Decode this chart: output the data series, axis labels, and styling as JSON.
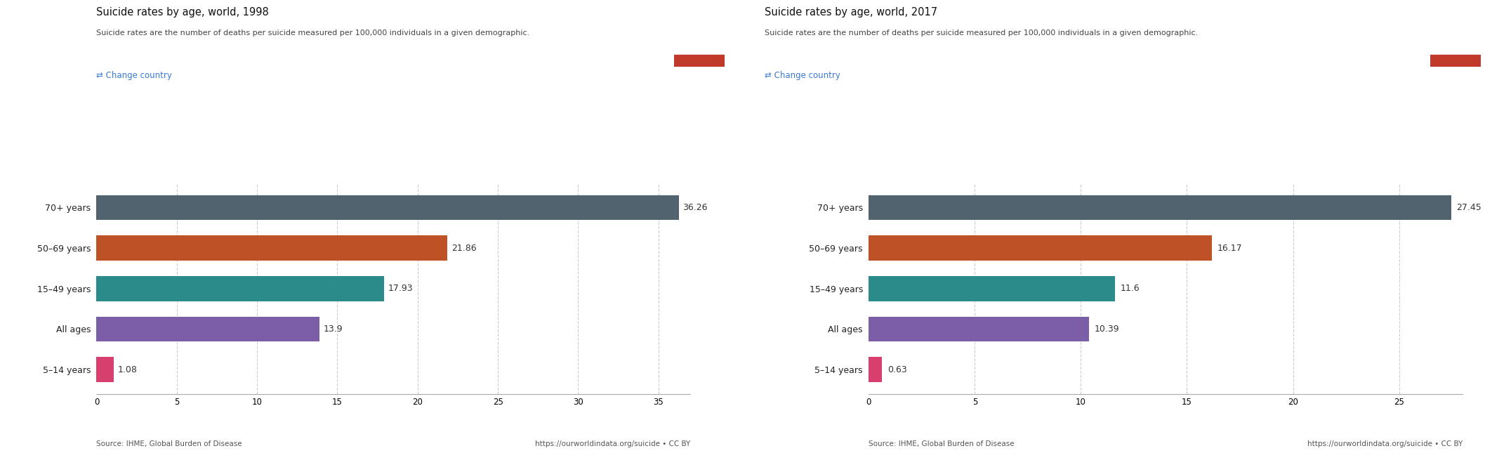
{
  "chart1": {
    "title": "Suicide rates by age, world, 1998",
    "subtitle": "Suicide rates are the number of deaths per suicide measured per 100,000 individuals in a given demographic.",
    "categories": [
      "70+ years",
      "50–69 years",
      "15–49 years",
      "All ages",
      "5–14 years"
    ],
    "values": [
      36.26,
      21.86,
      17.93,
      13.9,
      1.08
    ],
    "colors": [
      "#526370",
      "#bf5127",
      "#2b8b8b",
      "#7c5da8",
      "#d63f6e"
    ],
    "xlim": [
      0,
      37
    ],
    "xticks": [
      0,
      5,
      10,
      15,
      20,
      25,
      30,
      35
    ],
    "source": "Source: IHME, Global Burden of Disease",
    "url": "https://ourworldindata.org/suicide • CC BY"
  },
  "chart2": {
    "title": "Suicide rates by age, world, 2017",
    "subtitle": "Suicide rates are the number of deaths per suicide measured per 100,000 individuals in a given demographic.",
    "categories": [
      "70+ years",
      "50–69 years",
      "15–49 years",
      "All ages",
      "5–14 years"
    ],
    "values": [
      27.45,
      16.17,
      11.6,
      10.39,
      0.63
    ],
    "colors": [
      "#526370",
      "#bf5127",
      "#2b8b8b",
      "#7c5da8",
      "#d63f6e"
    ],
    "xlim": [
      0,
      28
    ],
    "xticks": [
      0,
      5,
      10,
      15,
      20,
      25
    ],
    "source": "Source: IHME, Global Burden of Disease",
    "url": "https://ourworldindata.org/suicide • CC BY"
  },
  "owid_bg": "#1d3557",
  "owid_red": "#c0392b",
  "change_country_color": "#3a7bd5",
  "background_color": "#ffffff",
  "bar_height": 0.62,
  "title_fontsize": 10.5,
  "subtitle_fontsize": 8,
  "label_fontsize": 9,
  "tick_fontsize": 8.5,
  "value_fontsize": 9,
  "source_fontsize": 7.5
}
